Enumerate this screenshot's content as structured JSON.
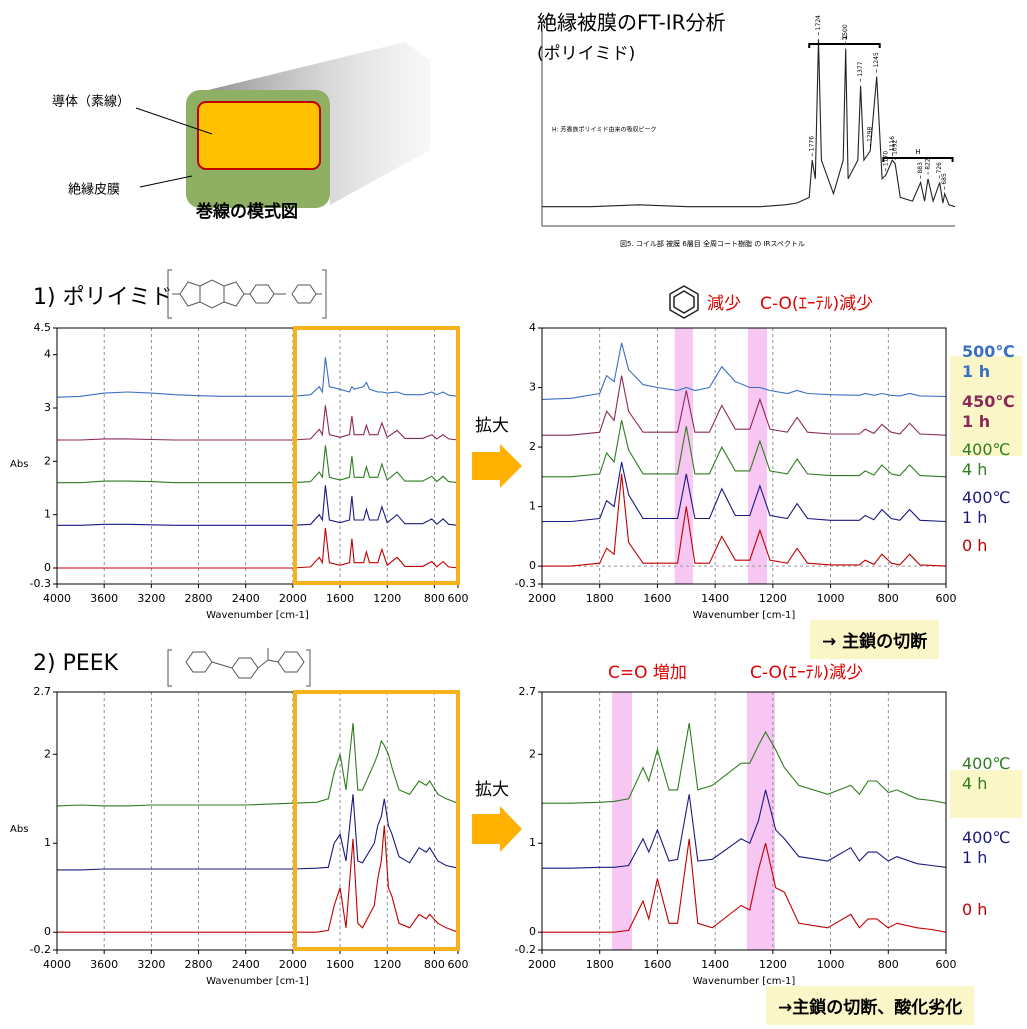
{
  "schematic": {
    "conductor": "導体（素線）",
    "insulation": "絶縁皮膜",
    "caption": "巻線の模式図"
  },
  "sections": [
    "1) ポリイミド",
    "2) PEEK"
  ],
  "zoom_labels": [
    "拡大",
    "拡大"
  ],
  "conclusions": [
    "→ 主鎖の切断",
    "→主鎖の切断、酸化劣化"
  ],
  "chart_data": [
    {
      "type": "line",
      "title": "絶縁被膜のFT-IR分析",
      "subtitle": "(ポリイミド)",
      "note": "H: 芳香族ポリイミド由来の吸収ピーク",
      "caption": "図5. コイル部 被膜 6層目 全周コート樹脂 の IRスペクトル",
      "xlim": [
        4000,
        600
      ],
      "ylim": [
        0,
        1
      ],
      "x": [
        4000,
        3600,
        3200,
        2800,
        2400,
        2200,
        2000,
        1900,
        1800,
        1776,
        1750,
        1724,
        1700,
        1600,
        1520,
        1500,
        1480,
        1400,
        1377,
        1350,
        1298,
        1245,
        1200,
        1170,
        1116,
        1092,
        1050,
        950,
        883,
        850,
        822,
        780,
        726,
        700,
        685,
        650,
        600
      ],
      "series": [
        {
          "color": "#222222",
          "values": [
            0.05,
            0.05,
            0.06,
            0.05,
            0.05,
            0.05,
            0.06,
            0.07,
            0.1,
            0.3,
            0.2,
            0.95,
            0.3,
            0.12,
            0.3,
            0.9,
            0.2,
            0.3,
            0.7,
            0.3,
            0.35,
            0.75,
            0.2,
            0.22,
            0.3,
            0.28,
            0.1,
            0.08,
            0.18,
            0.08,
            0.2,
            0.08,
            0.18,
            0.07,
            0.12,
            0.06,
            0.05
          ]
        }
      ],
      "peak_labels": [
        1776,
        1724,
        1500,
        1377,
        1298,
        1245,
        1170,
        1116,
        1092,
        883,
        822,
        726,
        685
      ],
      "brackets": [
        {
          "label": "H",
          "from": 1800,
          "to": 1220
        },
        {
          "label": "H",
          "from": 1190,
          "to": 620
        }
      ]
    },
    {
      "type": "line",
      "xlabel": "Wavenumber [cm-1]",
      "ylabel": "Abs",
      "grid": true,
      "xlim": [
        4000,
        600
      ],
      "ylim": [
        -0.3,
        4.5
      ],
      "xticks": [
        4000,
        3600,
        3200,
        2800,
        2400,
        2000,
        1600,
        1200,
        800,
        600
      ],
      "yticks": [
        -0.3,
        0,
        1,
        2,
        3,
        4,
        4.5
      ],
      "x": [
        4000,
        3800,
        3600,
        3400,
        3200,
        3000,
        2800,
        2600,
        2400,
        2200,
        2000,
        1850,
        1776,
        1750,
        1724,
        1690,
        1600,
        1520,
        1500,
        1480,
        1400,
        1377,
        1350,
        1280,
        1245,
        1200,
        1116,
        1050,
        900,
        822,
        780,
        726,
        680,
        600
      ],
      "series": [
        {
          "color": "#c00000",
          "values": [
            0,
            0,
            0,
            0,
            0,
            0,
            0,
            0,
            0,
            0,
            0,
            0.02,
            0.2,
            0.1,
            0.75,
            0.1,
            0.05,
            0.1,
            0.55,
            0.1,
            0.1,
            0.3,
            0.1,
            0.1,
            0.35,
            0.05,
            0.2,
            0.03,
            0.03,
            0.12,
            0.02,
            0.12,
            0.02,
            0
          ]
        },
        {
          "color": "#1a1a80",
          "values": [
            0.8,
            0.8,
            0.82,
            0.82,
            0.81,
            0.8,
            0.8,
            0.8,
            0.8,
            0.8,
            0.8,
            0.82,
            1.0,
            0.9,
            1.55,
            0.9,
            0.85,
            0.9,
            1.35,
            0.9,
            0.9,
            1.1,
            0.9,
            0.9,
            1.15,
            0.85,
            1.0,
            0.83,
            0.83,
            0.92,
            0.82,
            0.92,
            0.82,
            0.8
          ]
        },
        {
          "color": "#2e7d1e",
          "values": [
            1.6,
            1.6,
            1.63,
            1.63,
            1.62,
            1.6,
            1.6,
            1.6,
            1.6,
            1.6,
            1.6,
            1.62,
            1.8,
            1.7,
            2.3,
            1.7,
            1.65,
            1.7,
            2.1,
            1.7,
            1.7,
            1.9,
            1.7,
            1.7,
            1.95,
            1.65,
            1.8,
            1.63,
            1.63,
            1.72,
            1.62,
            1.72,
            1.62,
            1.6
          ]
        },
        {
          "color": "#8b2a5a",
          "values": [
            2.4,
            2.4,
            2.42,
            2.42,
            2.41,
            2.4,
            2.4,
            2.4,
            2.4,
            2.4,
            2.4,
            2.42,
            2.6,
            2.5,
            3.05,
            2.5,
            2.45,
            2.5,
            2.85,
            2.5,
            2.5,
            2.68,
            2.5,
            2.5,
            2.72,
            2.45,
            2.58,
            2.43,
            2.43,
            2.5,
            2.42,
            2.5,
            2.42,
            2.4
          ]
        },
        {
          "color": "#3a6fc4",
          "values": [
            3.2,
            3.22,
            3.28,
            3.3,
            3.28,
            3.25,
            3.23,
            3.22,
            3.22,
            3.22,
            3.22,
            3.25,
            3.4,
            3.3,
            3.95,
            3.4,
            3.35,
            3.3,
            3.4,
            3.35,
            3.4,
            3.48,
            3.35,
            3.3,
            3.3,
            3.28,
            3.3,
            3.25,
            3.25,
            3.3,
            3.25,
            3.3,
            3.24,
            3.22
          ]
        }
      ]
    },
    {
      "type": "line",
      "xlabel": "Wavenumber [cm-1]",
      "grid": true,
      "zero_line": true,
      "xlim": [
        2000,
        600
      ],
      "ylim": [
        -0.3,
        4
      ],
      "xticks": [
        2000,
        1800,
        1600,
        1400,
        1200,
        1000,
        800,
        600
      ],
      "yticks": [
        -0.3,
        0,
        1,
        2,
        3,
        4
      ],
      "bands": [
        [
          1540,
          1477
        ],
        [
          1286,
          1220
        ]
      ],
      "annotations": [
        "減少",
        "C-O(ｴｰﾃﾙ)減少"
      ],
      "x": [
        2000,
        1900,
        1800,
        1776,
        1750,
        1724,
        1700,
        1650,
        1600,
        1530,
        1500,
        1470,
        1420,
        1377,
        1330,
        1280,
        1245,
        1210,
        1150,
        1116,
        1080,
        1000,
        900,
        880,
        850,
        822,
        790,
        760,
        726,
        690,
        600
      ],
      "series": [
        {
          "name": "0 h",
          "color": "#c00000",
          "values": [
            0,
            0,
            0.05,
            0.3,
            0.2,
            1.55,
            0.4,
            0.05,
            0.05,
            0.05,
            1.0,
            0.05,
            0.05,
            0.5,
            0.1,
            0.1,
            0.6,
            0.1,
            0.05,
            0.3,
            0.05,
            0.02,
            0.02,
            0.1,
            0.03,
            0.2,
            0.05,
            0.02,
            0.2,
            0.02,
            0
          ]
        },
        {
          "name": "400℃ 1 h",
          "color": "#1a1a80",
          "values": [
            0.75,
            0.75,
            0.8,
            1.1,
            1.0,
            1.75,
            1.2,
            0.8,
            0.8,
            0.8,
            1.55,
            0.8,
            0.8,
            1.3,
            0.85,
            0.85,
            1.35,
            0.85,
            0.8,
            1.05,
            0.8,
            0.77,
            0.77,
            0.85,
            0.78,
            0.95,
            0.8,
            0.77,
            0.95,
            0.77,
            0.75
          ]
        },
        {
          "name": "400℃ 4 h",
          "color": "#2e7d1e",
          "values": [
            1.5,
            1.5,
            1.55,
            1.9,
            1.75,
            2.45,
            1.95,
            1.55,
            1.55,
            1.55,
            2.35,
            1.55,
            1.55,
            2.0,
            1.6,
            1.6,
            2.1,
            1.6,
            1.55,
            1.8,
            1.55,
            1.52,
            1.52,
            1.6,
            1.53,
            1.7,
            1.55,
            1.52,
            1.7,
            1.52,
            1.5
          ]
        },
        {
          "name": "450℃ 1 h",
          "color": "#8b2a5a",
          "values": [
            2.2,
            2.2,
            2.25,
            2.6,
            2.45,
            3.2,
            2.6,
            2.25,
            2.25,
            2.25,
            2.95,
            2.25,
            2.25,
            2.7,
            2.3,
            2.3,
            2.8,
            2.3,
            2.25,
            2.5,
            2.25,
            2.22,
            2.22,
            2.3,
            2.23,
            2.38,
            2.25,
            2.22,
            2.4,
            2.22,
            2.2
          ]
        },
        {
          "name": "500℃ 1 h",
          "color": "#3a6fc4",
          "values": [
            2.8,
            2.82,
            2.9,
            3.2,
            3.1,
            3.75,
            3.3,
            3.05,
            3.0,
            2.95,
            3.0,
            2.95,
            3.0,
            3.35,
            3.1,
            3.0,
            3.0,
            2.95,
            2.9,
            2.95,
            2.9,
            2.88,
            2.87,
            2.9,
            2.87,
            2.9,
            2.87,
            2.86,
            2.9,
            2.86,
            2.85
          ]
        }
      ]
    },
    {
      "type": "line",
      "xlabel": "Wavenumber [cm-1]",
      "ylabel": "Abs",
      "grid": true,
      "xlim": [
        4000,
        600
      ],
      "ylim": [
        -0.2,
        2.7
      ],
      "xticks": [
        4000,
        3600,
        3200,
        2800,
        2400,
        2000,
        1600,
        1200,
        800,
        600
      ],
      "yticks": [
        -0.2,
        0,
        1,
        2,
        2.7
      ],
      "x": [
        4000,
        3800,
        3600,
        3400,
        3200,
        3000,
        2800,
        2600,
        2400,
        2200,
        2000,
        1800,
        1700,
        1650,
        1600,
        1550,
        1490,
        1450,
        1410,
        1310,
        1280,
        1250,
        1225,
        1190,
        1160,
        1100,
        1010,
        930,
        870,
        840,
        770,
        700,
        600
      ],
      "series": [
        {
          "color": "#c00000",
          "values": [
            0,
            0,
            0,
            0,
            0,
            0,
            0,
            0,
            0,
            0,
            0,
            0,
            0.02,
            0.3,
            0.5,
            0.05,
            1.05,
            0.1,
            0.05,
            0.3,
            0.6,
            0.8,
            1.2,
            0.5,
            0.4,
            0.1,
            0.05,
            0.2,
            0.15,
            0.2,
            0.1,
            0.05,
            0
          ]
        },
        {
          "color": "#1a1a80",
          "values": [
            0.7,
            0.7,
            0.71,
            0.71,
            0.71,
            0.71,
            0.71,
            0.71,
            0.71,
            0.71,
            0.71,
            0.72,
            0.73,
            1.0,
            1.1,
            0.8,
            1.55,
            0.8,
            0.78,
            1.0,
            1.2,
            1.3,
            1.5,
            1.2,
            1.1,
            0.85,
            0.78,
            0.95,
            0.9,
            0.95,
            0.8,
            0.75,
            0.72
          ]
        },
        {
          "color": "#2e7d1e",
          "values": [
            1.42,
            1.43,
            1.42,
            1.42,
            1.43,
            1.43,
            1.43,
            1.43,
            1.43,
            1.44,
            1.45,
            1.46,
            1.5,
            1.8,
            2.0,
            1.6,
            2.35,
            1.6,
            1.6,
            1.9,
            2.0,
            2.15,
            2.1,
            2.0,
            1.85,
            1.6,
            1.55,
            1.7,
            1.65,
            1.7,
            1.55,
            1.5,
            1.45
          ]
        }
      ]
    },
    {
      "type": "line",
      "xlabel": "Wavenumber [cm-1]",
      "grid": true,
      "xlim": [
        2000,
        600
      ],
      "ylim": [
        -0.2,
        2.7
      ],
      "xticks": [
        2000,
        1800,
        1600,
        1400,
        1200,
        1000,
        800,
        600
      ],
      "yticks": [
        -0.2,
        0,
        1,
        2,
        2.7
      ],
      "bands": [
        [
          1757,
          1688
        ],
        [
          1290,
          1193
        ]
      ],
      "annotations": [
        "C=O 増加",
        "C-O(ｴｰﾃﾙ)減少"
      ],
      "x": [
        2000,
        1900,
        1800,
        1750,
        1700,
        1650,
        1630,
        1600,
        1560,
        1530,
        1490,
        1460,
        1410,
        1310,
        1280,
        1250,
        1225,
        1190,
        1160,
        1110,
        1010,
        930,
        900,
        870,
        840,
        800,
        770,
        700,
        650,
        600
      ],
      "series": [
        {
          "name": "0 h",
          "color": "#c00000",
          "values": [
            0,
            0,
            0,
            0,
            0.02,
            0.35,
            0.15,
            0.6,
            0.1,
            0.1,
            1.05,
            0.1,
            0.05,
            0.3,
            0.25,
            0.7,
            1.0,
            0.5,
            0.45,
            0.1,
            0.05,
            0.2,
            0.05,
            0.15,
            0.15,
            0.05,
            0.1,
            0.05,
            0.03,
            0
          ]
        },
        {
          "name": "400℃ 1 h",
          "color": "#1a1a80",
          "values": [
            0.72,
            0.72,
            0.73,
            0.73,
            0.75,
            1.05,
            0.9,
            1.15,
            0.8,
            0.82,
            1.55,
            0.8,
            0.82,
            1.05,
            1.0,
            1.25,
            1.6,
            1.15,
            1.05,
            0.85,
            0.8,
            0.95,
            0.8,
            0.9,
            0.9,
            0.8,
            0.85,
            0.77,
            0.75,
            0.73
          ]
        },
        {
          "name": "400℃ 4 h",
          "color": "#2e7d1e",
          "values": [
            1.45,
            1.45,
            1.46,
            1.47,
            1.5,
            1.85,
            1.7,
            2.05,
            1.6,
            1.6,
            2.35,
            1.6,
            1.65,
            1.9,
            1.9,
            2.1,
            2.25,
            2.05,
            1.85,
            1.65,
            1.55,
            1.65,
            1.55,
            1.7,
            1.7,
            1.57,
            1.6,
            1.5,
            1.48,
            1.45
          ]
        }
      ]
    }
  ]
}
